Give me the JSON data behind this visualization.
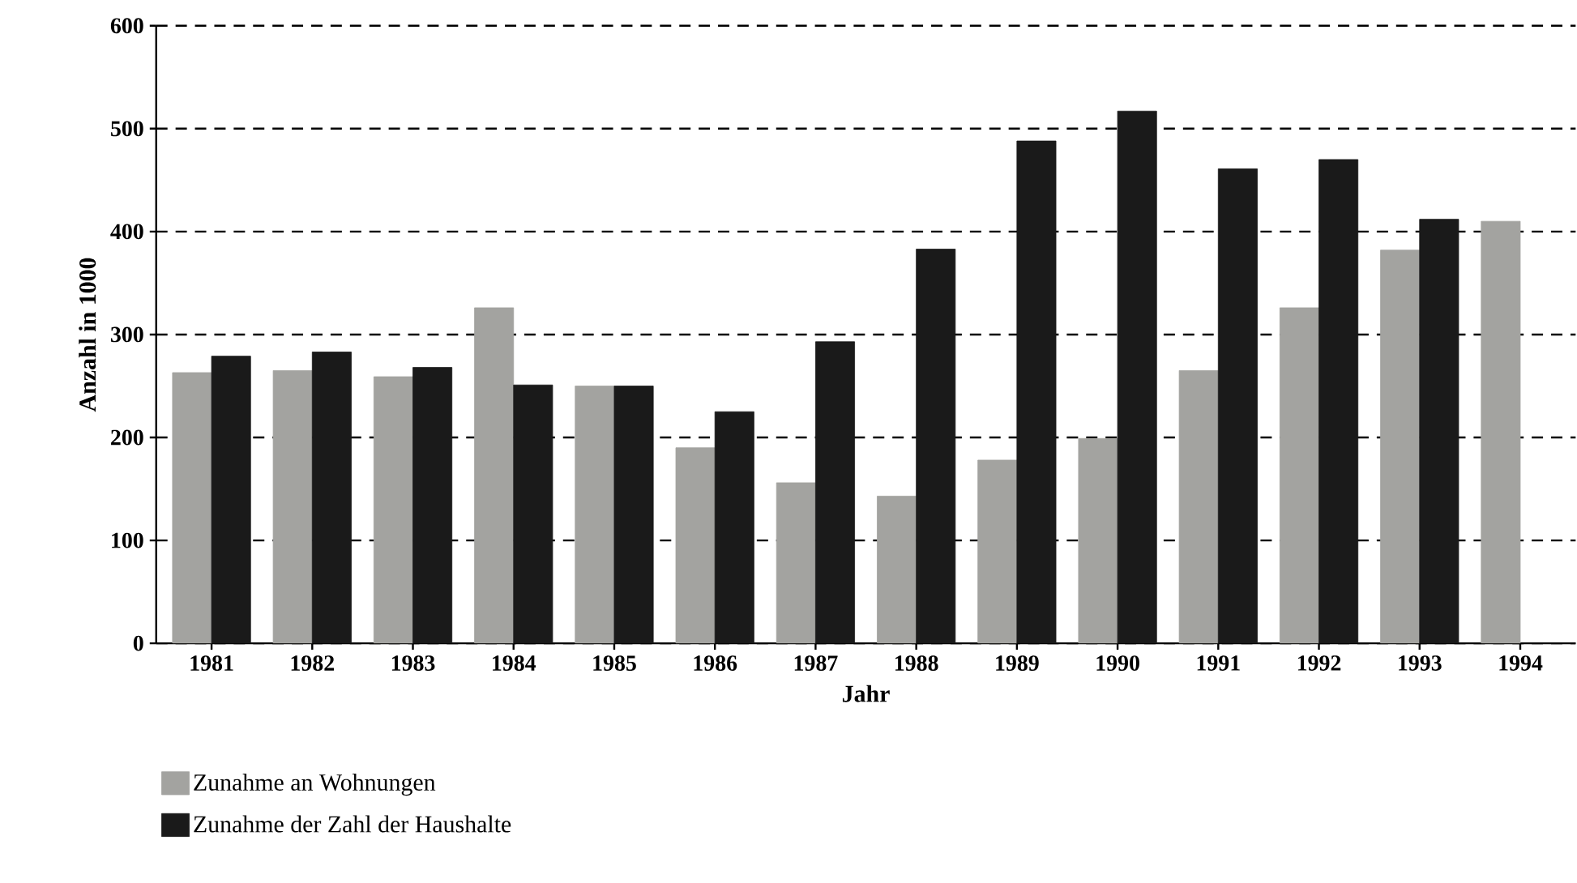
{
  "chart_data": {
    "type": "bar",
    "xlabel": "Jahr",
    "ylabel": "Anzahl in 1000",
    "categories": [
      "1981",
      "1982",
      "1983",
      "1984",
      "1985",
      "1986",
      "1987",
      "1988",
      "1989",
      "1990",
      "1991",
      "1992",
      "1993",
      "1994"
    ],
    "series": [
      {
        "name": "Zunahme an Wohnungen",
        "color": "#a3a3a0",
        "values": [
          263,
          265,
          259,
          326,
          250,
          190,
          156,
          143,
          178,
          199,
          265,
          326,
          382,
          410
        ]
      },
      {
        "name": "Zunahme der Zahl der Haushalte",
        "color": "#1a1a1a",
        "values": [
          279,
          283,
          268,
          251,
          250,
          225,
          293,
          383,
          488,
          517,
          461,
          470,
          412,
          null
        ]
      }
    ],
    "ylim": [
      0,
      600
    ],
    "yticks": [
      0,
      100,
      200,
      300,
      400,
      500,
      600
    ],
    "grid": "y",
    "legend": "bottom left"
  }
}
